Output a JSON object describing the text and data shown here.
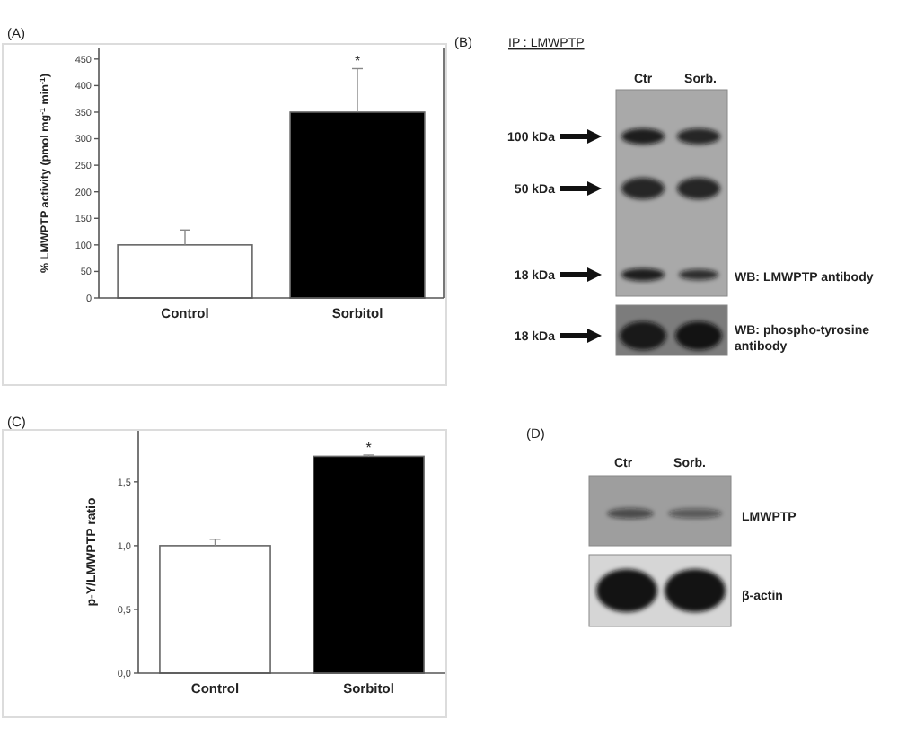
{
  "chart_data": [
    {
      "type": "bar",
      "title": "(A)",
      "ylabel": "% LMWPTP activity (pmol mg$^{-1}$ min$^{-1}$)",
      "categories": [
        "Control",
        "Sorbitol"
      ],
      "values": [
        100,
        350
      ],
      "colors": [
        "#ffffff",
        "#000000"
      ],
      "errors": [
        [
          100,
          128
        ],
        [
          350,
          432
        ]
      ],
      "ylim": [
        0,
        470
      ],
      "yticks": [
        0,
        50,
        100,
        150,
        200,
        250,
        300,
        350,
        400,
        450
      ],
      "annotations": [
        {
          "text": "*",
          "x": "Sorbitol",
          "y": 432
        }
      ]
    },
    {
      "type": "other",
      "title": "(B)",
      "subtitle": "IP : LMWPTP",
      "annotations": [
        "Ctr",
        "Sorb.",
        "100 kDa",
        "50 kDa",
        "18 kDa",
        "18 kDa",
        "WB: LMWPTP antibody",
        "WB: phospho-tyrosine antibody"
      ]
    },
    {
      "type": "bar",
      "title": "(C)",
      "ylabel": "p-Y/LMWPTP ratio",
      "categories": [
        "Control",
        "Sorbitol"
      ],
      "values": [
        1.0,
        1.7
      ],
      "colors": [
        "#ffffff",
        "#000000"
      ],
      "errors": [
        [
          1.0,
          1.05
        ],
        [
          1.7,
          1.71
        ]
      ],
      "ylim": [
        0,
        1.9
      ],
      "yticks": [
        {
          "value": 0,
          "label": "0,0"
        },
        {
          "value": 0.5,
          "label": "0,5"
        },
        {
          "value": 1.0,
          "label": "1,0"
        },
        {
          "value": 1.5,
          "label": "1,5"
        }
      ],
      "annotations": [
        {
          "text": "*",
          "x": "Sorbitol",
          "y": 1.71
        }
      ]
    },
    {
      "type": "other",
      "title": "(D)",
      "annotations": [
        "Ctr",
        "Sorb.",
        "LMWPTP",
        "β-actin"
      ]
    }
  ]
}
